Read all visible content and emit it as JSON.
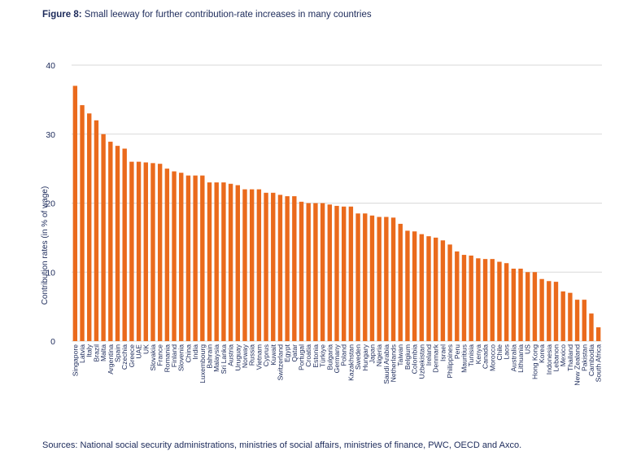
{
  "figure": {
    "label": "Figure 8:",
    "title": "Small leeway for further contribution-rate increases in many countries"
  },
  "source": "Sources: National social security administrations, ministries of social affairs, ministries of finance, PWC, OECD and Axco.",
  "colors": {
    "bar": "#ea6a1c",
    "grid": "#d9d9d9",
    "text": "#1c2a5a"
  },
  "chart_data": {
    "type": "bar",
    "title": "Small leeway for further contribution-rate increases in many countries",
    "xlabel": "",
    "ylabel": "Contribution rates (in % of wage)",
    "ylim": [
      0,
      40
    ],
    "yticks": [
      0,
      10,
      20,
      30,
      40
    ],
    "grid": true,
    "categories": [
      "Singapore",
      "Latvia",
      "Italy",
      "Brazil",
      "Malta",
      "Argentina",
      "Spain",
      "Czechia",
      "Greece",
      "UAE",
      "UK",
      "Slovakia",
      "France",
      "Romania",
      "Finland",
      "Slovenia",
      "China",
      "India",
      "Luxembourg",
      "Bahrain",
      "Malaysia",
      "Sri Lanka",
      "Austria",
      "Uruguay",
      "Norway",
      "Russia",
      "Vietnam",
      "Cyprus",
      "Kuwait",
      "Switzerland",
      "Egypt",
      "Qatar",
      "Portugal",
      "Croatia",
      "Estonia",
      "Türkiye",
      "Bulgaria",
      "Germany",
      "Poland",
      "Kazakhstan",
      "Sweden",
      "Hungary",
      "Japan",
      "Nigeria",
      "Saudi Arabia",
      "Netherlands",
      "Taiwan",
      "Belgium",
      "Colombia",
      "Uzbekistan",
      "Ireland",
      "Denmark",
      "Israel",
      "Philippines",
      "Peru",
      "Mauritius",
      "Tunisia",
      "Kenya",
      "Canada",
      "Morocco",
      "Chile",
      "Laos",
      "Australia",
      "Lithuania",
      "US",
      "Hong Kong",
      "Korea",
      "Indonesia",
      "Lebanon",
      "Mexico",
      "Thailand",
      "New Zealand",
      "Pakistan",
      "Cambodia",
      "South Africa"
    ],
    "values": [
      37,
      34.2,
      33,
      32,
      30,
      28.9,
      28.3,
      27.9,
      26,
      26,
      25.9,
      25.8,
      25.7,
      25,
      24.6,
      24.4,
      24,
      24,
      24,
      23,
      23,
      23,
      22.8,
      22.6,
      22,
      22,
      22,
      21.5,
      21.5,
      21.2,
      21,
      21,
      20.2,
      20,
      20,
      20,
      19.8,
      19.6,
      19.5,
      19.5,
      18.5,
      18.5,
      18.2,
      18,
      18,
      17.9,
      17,
      16,
      15.9,
      15.5,
      15.2,
      15,
      14.6,
      14,
      13,
      12.5,
      12.4,
      12,
      11.9,
      11.9,
      11.5,
      11.3,
      10.5,
      10.5,
      10,
      10,
      9,
      8.7,
      8.6,
      7.2,
      7,
      6,
      6,
      4,
      2
    ]
  }
}
